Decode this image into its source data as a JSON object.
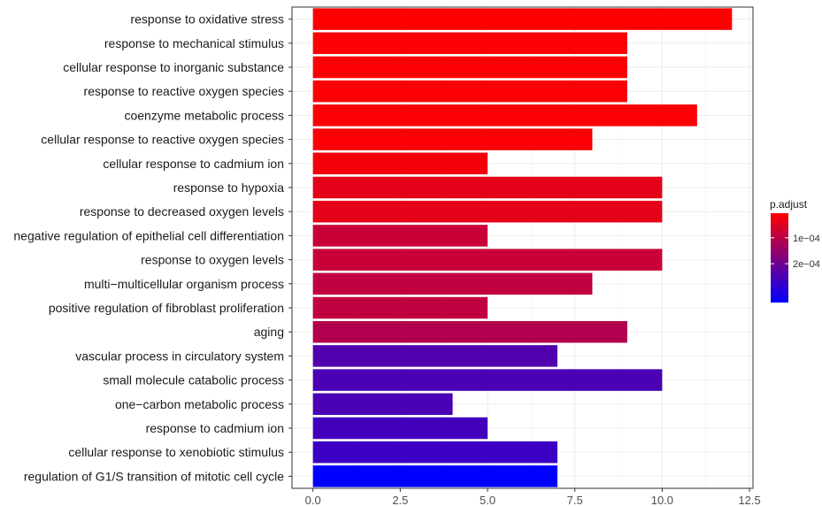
{
  "chart_data": {
    "type": "bar",
    "orientation": "horizontal",
    "categories": [
      "response to oxidative stress",
      "response to mechanical stimulus",
      "cellular response to inorganic substance",
      "response to reactive oxygen species",
      "coenzyme metabolic process",
      "cellular response to reactive oxygen species",
      "cellular response to cadmium ion",
      "response to hypoxia",
      "response to decreased oxygen levels",
      "negative regulation of epithelial cell differentiation",
      "response to oxygen levels",
      "multi−multicellular organism process",
      "positive regulation of fibroblast proliferation",
      "aging",
      "vascular process in circulatory system",
      "small molecule catabolic process",
      "one−carbon metabolic process",
      "response to cadmium ion",
      "cellular response to xenobiotic stimulus",
      "regulation of G1/S transition of mitotic cell cycle"
    ],
    "values": [
      12,
      9,
      9,
      9,
      11,
      8,
      5,
      10,
      10,
      5,
      10,
      8,
      5,
      9,
      7,
      10,
      4,
      5,
      7,
      7
    ],
    "p_adjust": [
      5e-06,
      1e-05,
      1e-05,
      1e-05,
      1e-05,
      1e-05,
      2e-05,
      4e-05,
      4e-05,
      8e-05,
      8e-05,
      9e-05,
      9e-05,
      0.00011,
      0.00024,
      0.00025,
      0.00025,
      0.00026,
      0.00027,
      0.00035
    ],
    "xlim": [
      -0.6,
      12.6
    ],
    "xticks": [
      0.0,
      2.5,
      5.0,
      7.5,
      10.0,
      12.5
    ],
    "xtick_labels": [
      "0.0",
      "2.5",
      "5.0",
      "7.5",
      "10.0",
      "12.5"
    ],
    "xlabel": "",
    "ylabel": "",
    "grid": true,
    "legend": {
      "title": "p.adjust",
      "placement": "right",
      "type": "colorbar",
      "range": [
        5e-06,
        0.00035
      ],
      "ticks": [
        0.0001,
        0.0002
      ],
      "tick_labels": [
        "1e−04",
        "2e−04"
      ],
      "colors": {
        "low": "#ff0000",
        "high": "#0000ff"
      }
    }
  }
}
